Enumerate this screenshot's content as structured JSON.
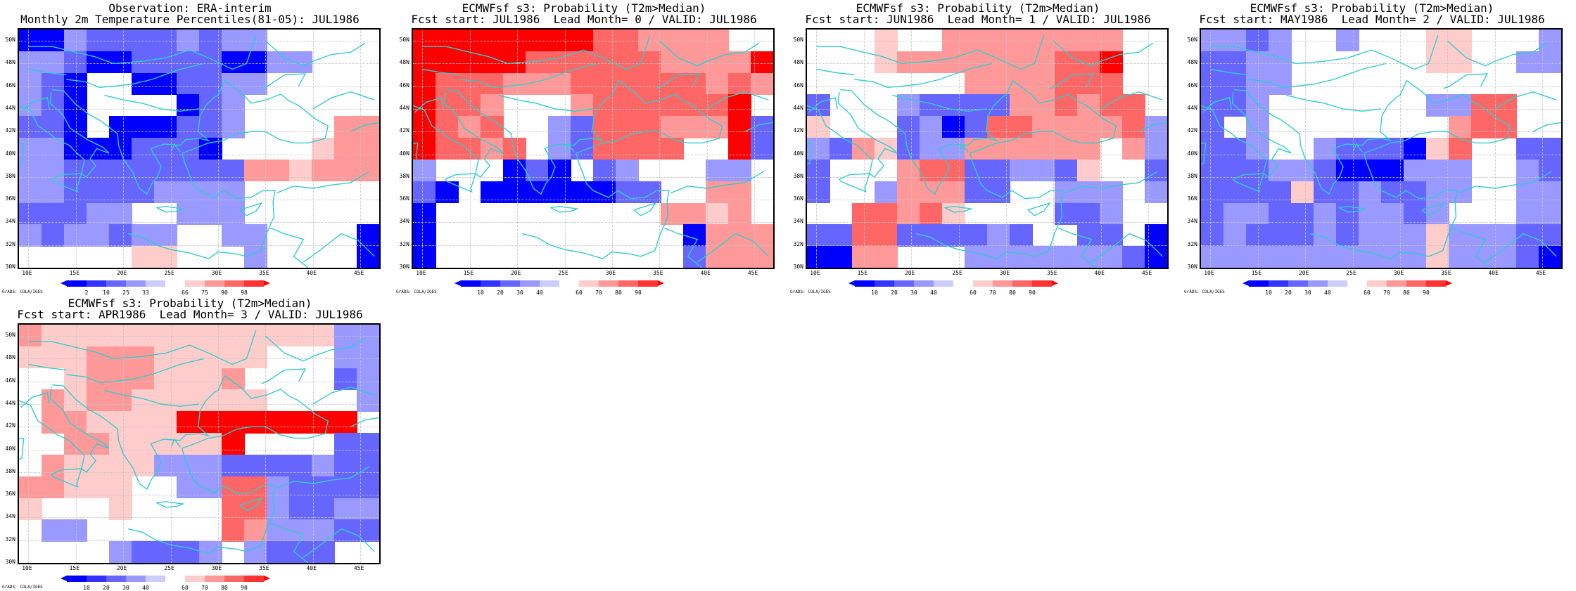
{
  "shared": {
    "x_ticks": [
      "10E",
      "15E",
      "20E",
      "25E",
      "30E",
      "35E",
      "40E",
      "45E"
    ],
    "y_ticks": [
      "30N",
      "32N",
      "34N",
      "36N",
      "38N",
      "40N",
      "42N",
      "44N",
      "46N",
      "48N",
      "50N"
    ],
    "credit": "GrADS: COLA/IGES",
    "colors": {
      "coastline": "#33cccc",
      "prob": [
        "#0000ff",
        "#3333ff",
        "#6666ff",
        "#9999ff",
        "#ccccff",
        "#ffffff",
        "#ffcccc",
        "#ff9999",
        "#ff6666",
        "#ff3333",
        "#ff0000"
      ]
    }
  },
  "chart_data": [
    {
      "type": "heatmap",
      "title": "Observation: ERA-interim",
      "subtitle": "Monthly 2m Temperature Percentiles(81-05): JUL1986",
      "colorbar_labels": [
        "2",
        "10",
        "25",
        "33",
        "66",
        "75",
        "90",
        "98"
      ],
      "lon_range": [
        9,
        47
      ],
      "lat_range": [
        30,
        51
      ],
      "grid_rows_north_to_south": [
        "1132222323300000",
        "3321122221133000",
        "3210011223300000",
        "3210000123000000",
        "2210111223000088",
        "3311122210000788",
        "3322222222887888",
        "3322223333000000",
        "2223300333000000",
        "3233233003300001",
        "0000077000300001"
      ]
    },
    {
      "type": "heatmap",
      "title": "ECMWFsf s3: Probability (T2m>Median)",
      "subtitle": "Fcst start: JUL1986  Lead Month= 0 / VALID: JUL1986",
      "colorbar_labels": [
        "10",
        "20",
        "30",
        "40",
        "60",
        "70",
        "80",
        "90"
      ],
      "lon_range": [
        9,
        47
      ],
      "lat_range": [
        30,
        51
      ],
      "grid_rows_north_to_south": [
        "AAAAAAAA99888800",
        "AAAAA9999998888A",
        "A999888999999898",
        "A9980008999999A0",
        "A9890032999888A2",
        "A9989032999900A2",
        "3000121023000330",
        "2101111112200880",
        "1000000000088780",
        "1000000000001888",
        "1000000000002888"
      ]
    },
    {
      "type": "heatmap",
      "title": "ECMWFsf s3: Probability (T2m>Median)",
      "subtitle": "Fcst start: JUN1986  Lead Month= 1 / VALID: JUL1986",
      "colorbar_labels": [
        "10",
        "20",
        "30",
        "40",
        "60",
        "70",
        "80",
        "90"
      ],
      "lon_range": [
        9,
        47
      ],
      "lat_range": [
        30,
        51
      ],
      "grid_rows_north_to_south": [
        "0007008888888800",
        "0007888888899A00",
        "0000000888899900",
        "2000322228898990",
        "7000231299888893",
        "3287233888888083",
        "2000899223327002",
        "2003888220033303",
        "0099897000022300",
        "2299222232002201",
        "1188000333333321"
      ]
    },
    {
      "type": "heatmap",
      "title": "ECMWFsf s3: Probability (T2m>Median)",
      "subtitle": "Fcst start: MAY1986  Lead Month= 2 / VALID: JUL1986",
      "colorbar_labels": [
        "10",
        "20",
        "30",
        "40",
        "60",
        "70",
        "80",
        "90"
      ],
      "lon_range": [
        9,
        47
      ],
      "lat_range": [
        30,
        51
      ],
      "grid_rows_north_to_south": [
        "3323003000770003",
        "2233000000770033",
        "2233000000000000",
        "2230000000339900",
        "2030000000089900",
        "2230032221790022",
        "2223321113330032",
        "2222722322330033",
        "2332232332300033",
        "2322232333733322",
        "3333333333733321"
      ]
    },
    {
      "type": "heatmap",
      "title": "ECMWFsf s3: Probability (T2m>Median)",
      "subtitle": "Fcst start: APR1986  Lead Month= 3 / VALID: JUL1986",
      "colorbar_labels": [
        "10",
        "20",
        "30",
        "40",
        "60",
        "70",
        "80",
        "90"
      ],
      "lon_range": [
        9,
        47
      ],
      "lat_range": [
        30,
        51
      ],
      "grid_rows_north_to_south": [
        "8777777777777733",
        "7778887777700033",
        "0078887778000023",
        "0878877777700003",
        "0887777AAAAAAAA0",
        "008877777A000022",
        "0877773332222322",
        "8877700339932222",
        "7000700009932233",
        "0330000009833322",
        "0000322230322200"
      ]
    }
  ]
}
